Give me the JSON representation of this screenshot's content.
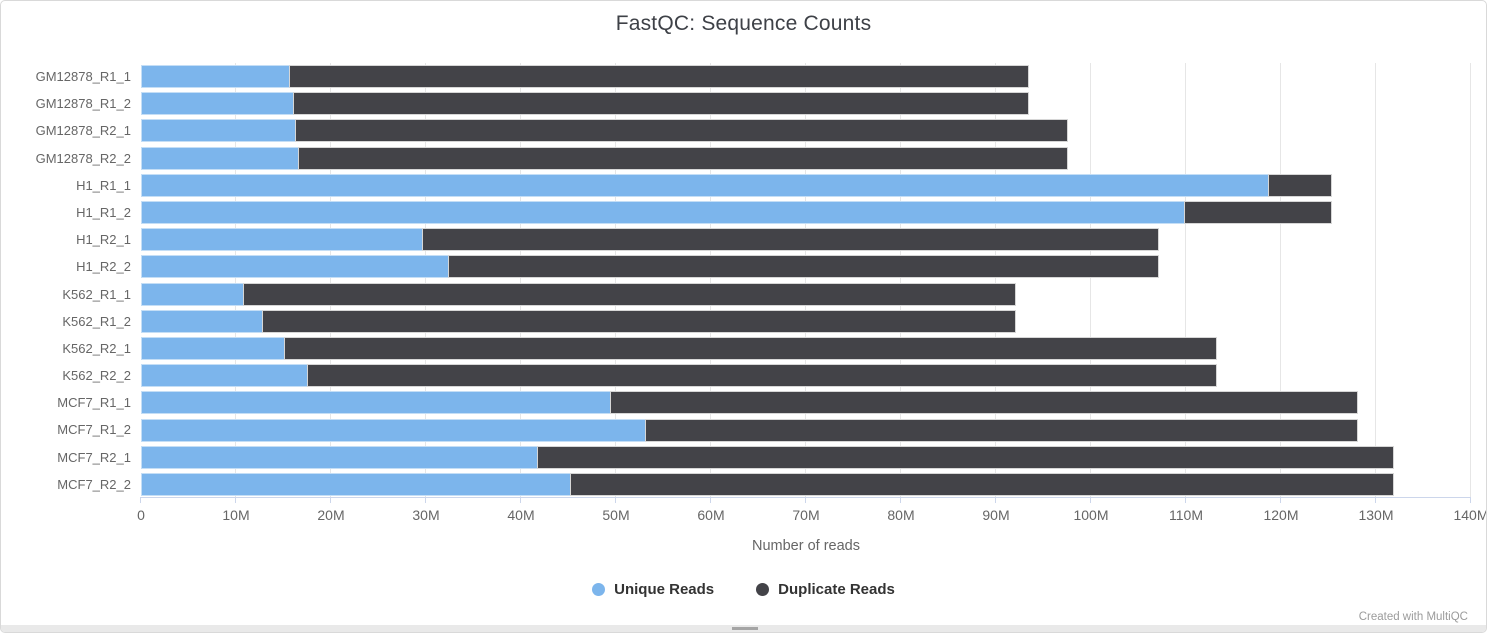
{
  "header": {
    "title": "FastQC: Sequence Counts"
  },
  "chart_data": {
    "type": "bar",
    "orientation": "horizontal-stacked",
    "title": "FastQC: Sequence Counts",
    "xlabel": "Number of reads",
    "ylabel": "",
    "xlim_millions": [
      0,
      140
    ],
    "grid": "vertical-on",
    "legend_position": "bottom-center",
    "x_ticks": [
      "0",
      "10M",
      "20M",
      "30M",
      "40M",
      "50M",
      "60M",
      "70M",
      "80M",
      "90M",
      "100M",
      "110M",
      "120M",
      "130M",
      "140M"
    ],
    "categories": [
      "GM12878_R1_1",
      "GM12878_R1_2",
      "GM12878_R2_1",
      "GM12878_R2_2",
      "H1_R1_1",
      "H1_R1_2",
      "H1_R2_1",
      "H1_R2_2",
      "K562_R1_1",
      "K562_R1_2",
      "K562_R2_1",
      "K562_R2_2",
      "MCF7_R1_1",
      "MCF7_R1_2",
      "MCF7_R2_1",
      "MCF7_R2_2"
    ],
    "series": [
      {
        "name": "Unique Reads",
        "color": "#7cb5ec",
        "values_millions": [
          15.6,
          16.0,
          16.2,
          16.5,
          118.6,
          109.8,
          29.6,
          32.3,
          10.7,
          12.7,
          15.1,
          17.5,
          49.4,
          53.1,
          41.7,
          45.2
        ]
      },
      {
        "name": "Duplicate Reads",
        "color": "#434348",
        "values_millions": [
          77.9,
          77.5,
          81.4,
          81.1,
          6.8,
          15.6,
          77.6,
          74.9,
          81.4,
          79.4,
          98.2,
          95.8,
          78.7,
          75.0,
          90.2,
          86.7
        ]
      }
    ]
  },
  "footer": {
    "credit": "Created with MultiQC"
  },
  "colors": {
    "unique_reads": "#7cb5ec",
    "duplicate_reads": "#434348",
    "title_text": "#3e4147",
    "axis_text": "#666666",
    "gridline": "#e6e6e6",
    "axis_line": "#ccd6eb",
    "legend_text": "#333333",
    "credit_text": "#9b9b9b",
    "frame_border": "#d9d9d9",
    "scrollbar_track": "#e9e9e9",
    "scrollbar_thumb": "#a5a5a5"
  }
}
